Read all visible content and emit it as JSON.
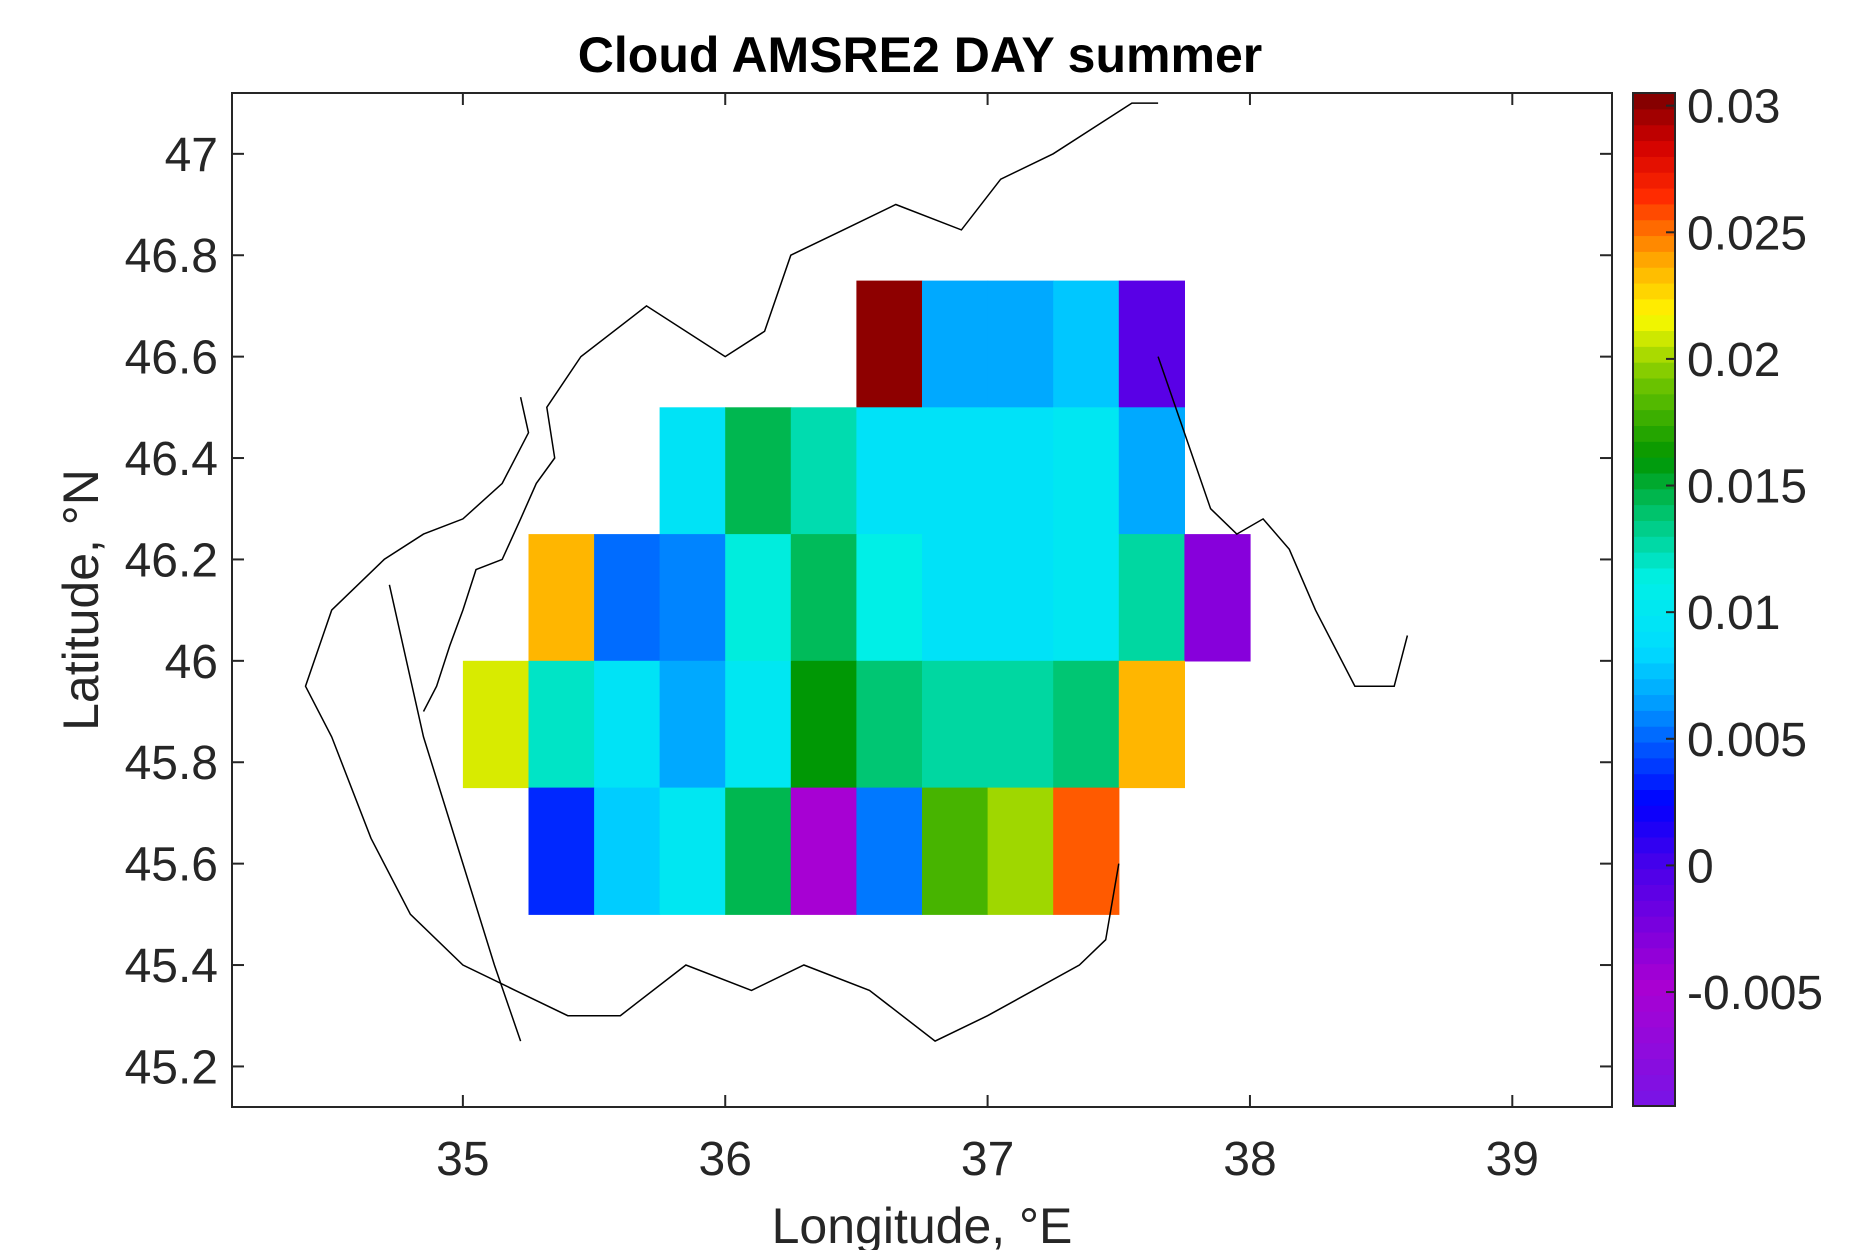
{
  "chart_data": {
    "type": "heatmap",
    "title": "Cloud AMSRE2 DAY summer",
    "xlabel": "Longitude, °E",
    "ylabel": "Latitude, °N",
    "xlim": [
      34.12,
      39.38
    ],
    "ylim": [
      45.12,
      47.12
    ],
    "x_ticks": [
      35,
      36,
      37,
      38,
      39
    ],
    "y_ticks": [
      45.2,
      45.4,
      45.6,
      45.8,
      46,
      46.2,
      46.4,
      46.6,
      46.8,
      47
    ],
    "x_tick_labels": [
      "35",
      "36",
      "37",
      "38",
      "39"
    ],
    "y_tick_labels": [
      "45.2",
      "45.4",
      "45.6",
      "45.8",
      "46",
      "46.2",
      "46.4",
      "46.6",
      "46.8",
      "47"
    ],
    "grid": false,
    "colormap": "jet-like",
    "colorbar": {
      "range": [
        -0.0095,
        0.0305
      ],
      "ticks": [
        -0.005,
        0,
        0.005,
        0.01,
        0.015,
        0.02,
        0.025,
        0.03
      ],
      "tick_labels": [
        "-0.005",
        "0",
        "0.005",
        "0.01",
        "0.015",
        "0.02",
        "0.025",
        "0.03"
      ]
    },
    "cell_size_deg": 0.25,
    "cells": [
      {
        "lon0": 36.5,
        "lat0": 46.5,
        "value": 0.03
      },
      {
        "lon0": 36.75,
        "lat0": 46.5,
        "value": 0.0068
      },
      {
        "lon0": 37.0,
        "lat0": 46.5,
        "value": 0.0068
      },
      {
        "lon0": 37.25,
        "lat0": 46.5,
        "value": 0.0078
      },
      {
        "lon0": 37.5,
        "lat0": 46.5,
        "value": -0.0008
      },
      {
        "lon0": 35.75,
        "lat0": 46.25,
        "value": 0.0095
      },
      {
        "lon0": 36.0,
        "lat0": 46.25,
        "value": 0.0145
      },
      {
        "lon0": 36.25,
        "lat0": 46.25,
        "value": 0.0125
      },
      {
        "lon0": 36.5,
        "lat0": 46.25,
        "value": 0.0093
      },
      {
        "lon0": 36.75,
        "lat0": 46.25,
        "value": 0.0093
      },
      {
        "lon0": 37.0,
        "lat0": 46.25,
        "value": 0.0093
      },
      {
        "lon0": 37.25,
        "lat0": 46.25,
        "value": 0.01
      },
      {
        "lon0": 37.5,
        "lat0": 46.25,
        "value": 0.0068
      },
      {
        "lon0": 35.25,
        "lat0": 46.0,
        "value": 0.0235
      },
      {
        "lon0": 35.5,
        "lat0": 46.0,
        "value": 0.0052
      },
      {
        "lon0": 35.75,
        "lat0": 46.0,
        "value": 0.0058
      },
      {
        "lon0": 36.0,
        "lat0": 46.0,
        "value": 0.0115
      },
      {
        "lon0": 36.25,
        "lat0": 46.0,
        "value": 0.0143
      },
      {
        "lon0": 36.5,
        "lat0": 46.0,
        "value": 0.0112
      },
      {
        "lon0": 36.75,
        "lat0": 46.0,
        "value": 0.0093
      },
      {
        "lon0": 37.0,
        "lat0": 46.0,
        "value": 0.0093
      },
      {
        "lon0": 37.25,
        "lat0": 46.0,
        "value": 0.01
      },
      {
        "lon0": 37.5,
        "lat0": 46.0,
        "value": 0.0128
      },
      {
        "lon0": 37.75,
        "lat0": 46.0,
        "value": -0.003
      },
      {
        "lon0": 35.0,
        "lat0": 45.75,
        "value": 0.021
      },
      {
        "lon0": 35.25,
        "lat0": 45.75,
        "value": 0.012
      },
      {
        "lon0": 35.5,
        "lat0": 45.75,
        "value": 0.0095
      },
      {
        "lon0": 35.75,
        "lat0": 45.75,
        "value": 0.0068
      },
      {
        "lon0": 36.0,
        "lat0": 45.75,
        "value": 0.01
      },
      {
        "lon0": 36.25,
        "lat0": 45.75,
        "value": 0.016
      },
      {
        "lon0": 36.5,
        "lat0": 45.75,
        "value": 0.0138
      },
      {
        "lon0": 36.75,
        "lat0": 45.75,
        "value": 0.0128
      },
      {
        "lon0": 37.0,
        "lat0": 45.75,
        "value": 0.0128
      },
      {
        "lon0": 37.25,
        "lat0": 45.75,
        "value": 0.0138
      },
      {
        "lon0": 37.5,
        "lat0": 45.75,
        "value": 0.0235
      },
      {
        "lon0": 35.25,
        "lat0": 45.5,
        "value": 0.0035
      },
      {
        "lon0": 35.5,
        "lat0": 45.5,
        "value": 0.008
      },
      {
        "lon0": 35.75,
        "lat0": 45.5,
        "value": 0.01
      },
      {
        "lon0": 36.0,
        "lat0": 45.5,
        "value": 0.0145
      },
      {
        "lon0": 36.25,
        "lat0": 45.5,
        "value": -0.005
      },
      {
        "lon0": 36.5,
        "lat0": 45.5,
        "value": 0.0055
      },
      {
        "lon0": 36.75,
        "lat0": 45.5,
        "value": 0.018
      },
      {
        "lon0": 37.0,
        "lat0": 45.5,
        "value": 0.02
      },
      {
        "lon0": 37.25,
        "lat0": 45.5,
        "value": 0.0255
      }
    ],
    "coastline_lonlat": [
      [
        [
          34.85,
          45.9
        ],
        [
          34.9,
          45.95
        ],
        [
          34.95,
          46.03
        ],
        [
          35.0,
          46.1
        ],
        [
          35.05,
          46.18
        ],
        [
          35.15,
          46.2
        ],
        [
          35.22,
          46.28
        ],
        [
          35.28,
          46.35
        ],
        [
          35.35,
          46.4
        ],
        [
          35.32,
          46.5
        ],
        [
          35.45,
          46.6
        ],
        [
          35.7,
          46.7
        ],
        [
          36.0,
          46.6
        ],
        [
          36.15,
          46.65
        ],
        [
          36.25,
          46.8
        ],
        [
          36.45,
          46.85
        ],
        [
          36.65,
          46.9
        ],
        [
          36.9,
          46.85
        ],
        [
          37.05,
          46.95
        ],
        [
          37.25,
          47.0
        ],
        [
          37.55,
          47.1
        ],
        [
          37.65,
          47.1
        ]
      ],
      [
        [
          37.65,
          46.6
        ],
        [
          37.75,
          46.45
        ],
        [
          37.85,
          46.3
        ],
        [
          37.95,
          46.25
        ],
        [
          38.05,
          46.28
        ],
        [
          38.15,
          46.22
        ],
        [
          38.25,
          46.1
        ],
        [
          38.4,
          45.95
        ],
        [
          38.55,
          45.95
        ],
        [
          38.6,
          46.05
        ]
      ],
      [
        [
          37.5,
          45.6
        ],
        [
          37.45,
          45.45
        ],
        [
          37.35,
          45.4
        ],
        [
          37.0,
          45.3
        ],
        [
          36.8,
          45.25
        ],
        [
          36.55,
          45.35
        ],
        [
          36.3,
          45.4
        ],
        [
          36.1,
          45.35
        ],
        [
          35.85,
          45.4
        ],
        [
          35.6,
          45.3
        ],
        [
          35.4,
          45.3
        ],
        [
          35.2,
          45.35
        ],
        [
          35.0,
          45.4
        ],
        [
          34.8,
          45.5
        ],
        [
          34.65,
          45.65
        ],
        [
          34.5,
          45.85
        ],
        [
          34.4,
          45.95
        ],
        [
          34.5,
          46.1
        ],
        [
          34.7,
          46.2
        ],
        [
          34.85,
          46.25
        ],
        [
          35.0,
          46.28
        ],
        [
          35.15,
          46.35
        ],
        [
          35.25,
          46.45
        ],
        [
          35.22,
          46.52
        ]
      ],
      [
        [
          34.72,
          46.15
        ],
        [
          34.85,
          45.85
        ],
        [
          35.0,
          45.6
        ],
        [
          35.12,
          45.4
        ],
        [
          35.22,
          45.25
        ]
      ]
    ]
  }
}
